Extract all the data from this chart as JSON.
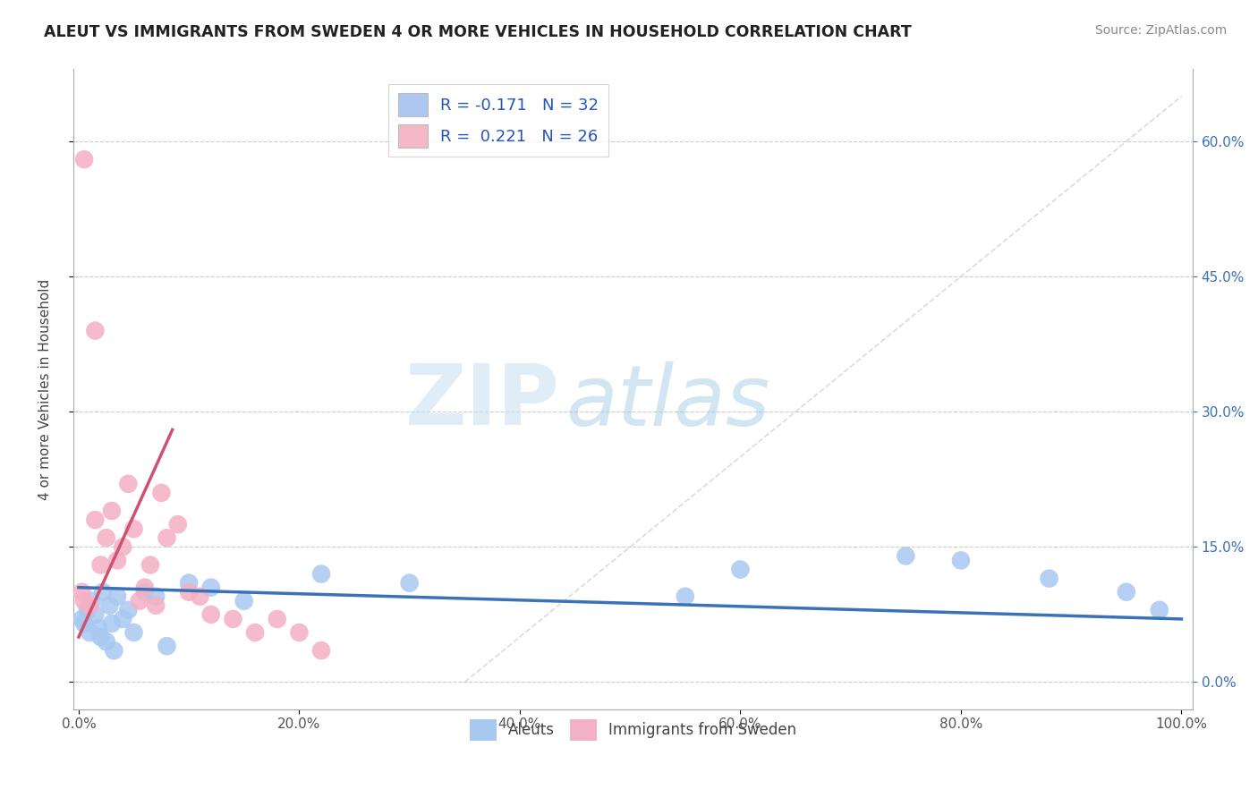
{
  "title": "ALEUT VS IMMIGRANTS FROM SWEDEN 4 OR MORE VEHICLES IN HOUSEHOLD CORRELATION CHART",
  "source": "Source: ZipAtlas.com",
  "ylabel": "4 or more Vehicles in Household",
  "xlabel": "",
  "xlim": [
    0,
    100
  ],
  "ylim": [
    -3,
    68
  ],
  "xticks": [
    0,
    20,
    40,
    60,
    80,
    100
  ],
  "xticklabels": [
    "0.0%",
    "20.0%",
    "40.0%",
    "60.0%",
    "80.0%",
    "100.0%"
  ],
  "yticks": [
    0,
    15,
    30,
    45,
    60
  ],
  "yticklabels": [
    "0.0%",
    "15.0%",
    "30.0%",
    "45.0%",
    "60.0%"
  ],
  "legend_entries": [
    {
      "label": "R = -0.171   N = 32",
      "color": "#aec6f0"
    },
    {
      "label": "R =  0.221   N = 26",
      "color": "#f4b8c8"
    }
  ],
  "aleuts_x": [
    0.3,
    0.5,
    0.8,
    1.0,
    1.2,
    1.5,
    1.8,
    2.0,
    2.2,
    2.5,
    2.8,
    3.0,
    3.2,
    3.5,
    4.0,
    4.5,
    5.0,
    6.0,
    7.0,
    8.0,
    10.0,
    12.0,
    15.0,
    22.0,
    30.0,
    55.0,
    60.0,
    75.0,
    80.0,
    88.0,
    95.0,
    98.0
  ],
  "aleuts_y": [
    7.0,
    6.5,
    8.0,
    5.5,
    9.0,
    7.5,
    6.0,
    5.0,
    10.0,
    4.5,
    8.5,
    6.5,
    3.5,
    9.5,
    7.0,
    8.0,
    5.5,
    10.0,
    9.5,
    4.0,
    11.0,
    10.5,
    9.0,
    12.0,
    11.0,
    9.5,
    12.5,
    14.0,
    13.5,
    11.5,
    10.0,
    8.0
  ],
  "sweden_x": [
    0.3,
    0.5,
    1.0,
    1.5,
    2.0,
    2.5,
    3.0,
    3.5,
    4.0,
    4.5,
    5.0,
    5.5,
    6.0,
    6.5,
    7.0,
    7.5,
    8.0,
    9.0,
    10.0,
    11.0,
    12.0,
    14.0,
    16.0,
    18.0,
    20.0,
    22.0
  ],
  "sweden_y": [
    10.0,
    9.0,
    8.5,
    18.0,
    13.0,
    16.0,
    19.0,
    13.5,
    15.0,
    22.0,
    17.0,
    9.0,
    10.5,
    13.0,
    8.5,
    21.0,
    16.0,
    17.5,
    10.0,
    9.5,
    7.5,
    7.0,
    5.5,
    7.0,
    5.5,
    3.5
  ],
  "sweden_outlier1_x": 0.5,
  "sweden_outlier1_y": 58.0,
  "sweden_outlier2_x": 1.5,
  "sweden_outlier2_y": 39.0,
  "blue_trend_x": [
    0,
    100
  ],
  "blue_trend_y": [
    10.5,
    7.0
  ],
  "pink_trend_x": [
    0.0,
    8.5
  ],
  "pink_trend_y": [
    5.0,
    28.0
  ],
  "blue_color": "#3a72b8",
  "pink_color": "#d05070",
  "blue_marker_color": "#a8c8f0",
  "pink_marker_color": "#f4b0c5",
  "grid_color": "#cccccc",
  "diagonal_color": "#cccccc",
  "watermark_zip": "ZIP",
  "watermark_atlas": "atlas",
  "background_color": "#ffffff"
}
